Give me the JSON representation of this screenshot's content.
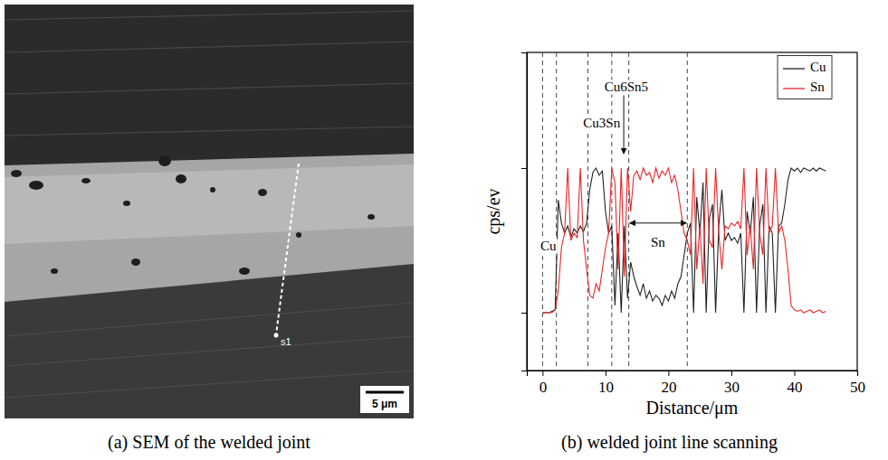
{
  "sem_image": {
    "title": "(a) SEM of the welded joint",
    "scale_bar": "5 μm",
    "line_label": "s1"
  },
  "chart_data": {
    "type": "line",
    "title": "(b) welded joint line scanning",
    "x_label": "Distance/μm",
    "y_label": "cps/ev",
    "xlim": [
      -2.5,
      50
    ],
    "ylim": [
      -0.4,
      1.8
    ],
    "xticks": [
      0,
      10,
      20,
      30,
      40,
      50
    ],
    "yticks": [
      0,
      1
    ],
    "tick_labels": "x",
    "legend": "top-right",
    "x": [
      0,
      0.5,
      1,
      1.5,
      2,
      2.5,
      3,
      3.5,
      4,
      4.5,
      5,
      5.5,
      6,
      6.5,
      7,
      7.5,
      8,
      8.5,
      9,
      9.5,
      10,
      10.5,
      11,
      11.5,
      12,
      12.5,
      13,
      13.5,
      14,
      14.5,
      15,
      15.5,
      16,
      16.5,
      17,
      17.5,
      18,
      18.5,
      19,
      19.5,
      20,
      20.5,
      21,
      21.5,
      22,
      22.5,
      23,
      23.5,
      24,
      24.5,
      25,
      25.5,
      26,
      26.5,
      27,
      27.5,
      28,
      28.5,
      29,
      29.5,
      30,
      30.5,
      31,
      31.5,
      32,
      32.5,
      33,
      33.5,
      34,
      34.5,
      35,
      35.5,
      36,
      36.5,
      37,
      37.5,
      38,
      38.5,
      39,
      39.5,
      40,
      40.5,
      41,
      41.5,
      42,
      42.5,
      43,
      43.5,
      44,
      44.5,
      45
    ],
    "series": [
      {
        "name": "Cu",
        "color": "#222222",
        "values": [
          0,
          0,
          0,
          0.01,
          0.02,
          0.78,
          0.62,
          0.55,
          0.6,
          0.52,
          0.58,
          0.55,
          0.6,
          0.56,
          0.62,
          0.85,
          0.97,
          1.0,
          0.95,
          0.98,
          0.7,
          0.55,
          0.6,
          0.05,
          0.55,
          0,
          0.6,
          0.1,
          0.35,
          0.25,
          0.18,
          0.12,
          0.2,
          0.1,
          0.15,
          0.08,
          0.12,
          0.1,
          0.05,
          0.12,
          0.08,
          0.15,
          0.1,
          0.2,
          0.25,
          0.4,
          0.55,
          0.62,
          0,
          0.8,
          0.55,
          0.9,
          0,
          0.65,
          0.75,
          0,
          0.6,
          0.85,
          0.5,
          0.55,
          0.5,
          0.52,
          0.48,
          0.55,
          0,
          0.7,
          0.55,
          0.8,
          0,
          0.6,
          0.75,
          0,
          0.6,
          0.55,
          0,
          0.6,
          0.62,
          0.75,
          0.92,
          1.0,
          0.98,
          1.0,
          0.97,
          1.0,
          0.99,
          0.98,
          1.0,
          0.98,
          1.0,
          0.99,
          0.98
        ]
      },
      {
        "name": "Sn",
        "color": "#e8262a",
        "values": [
          0,
          0,
          0,
          0,
          0.02,
          0.15,
          0.45,
          0.55,
          1.0,
          0.5,
          0.55,
          0.52,
          1.0,
          0.5,
          0.3,
          0.12,
          0.1,
          0.2,
          0.15,
          0.3,
          0.45,
          0.55,
          1.0,
          0.9,
          0.3,
          1.0,
          0.25,
          1.0,
          0.7,
          0.95,
          0.98,
          0.92,
          1.0,
          0.95,
          0.97,
          0.9,
          1.0,
          0.93,
          0.98,
          0.95,
          1.0,
          0.9,
          0.95,
          0.85,
          0.7,
          0.55,
          0.5,
          0.4,
          1.0,
          0.3,
          0.6,
          0.2,
          1.0,
          0.5,
          0.45,
          1.0,
          0.55,
          0.3,
          0.6,
          0.58,
          0.62,
          0.6,
          0.63,
          0.58,
          1.0,
          0.4,
          0.6,
          0.3,
          1.0,
          0.55,
          0.4,
          1.0,
          0.55,
          0.6,
          1.0,
          0.55,
          0.6,
          0.5,
          0.3,
          0.05,
          0.02,
          0.01,
          0.02,
          0,
          0.01,
          0.02,
          0,
          0.01,
          0.02,
          0,
          0.01
        ]
      }
    ],
    "boundaries": [
      0,
      2.2,
      7.2,
      11,
      13.7,
      23
    ],
    "annotations": [
      {
        "text": "Cu",
        "x": 0.9,
        "y": 0.45
      },
      {
        "text": "Cu3Sn",
        "x": 9.4,
        "y": 1.3
      },
      {
        "text": "Cu6Sn5",
        "x": 13.3,
        "y": 1.55,
        "arrow_to": [
          12.9,
          1.1
        ]
      },
      {
        "text": "Sn",
        "x": 18.35,
        "y": 0.48,
        "span": [
          13.7,
          23
        ],
        "span_y": 0.62
      }
    ]
  }
}
